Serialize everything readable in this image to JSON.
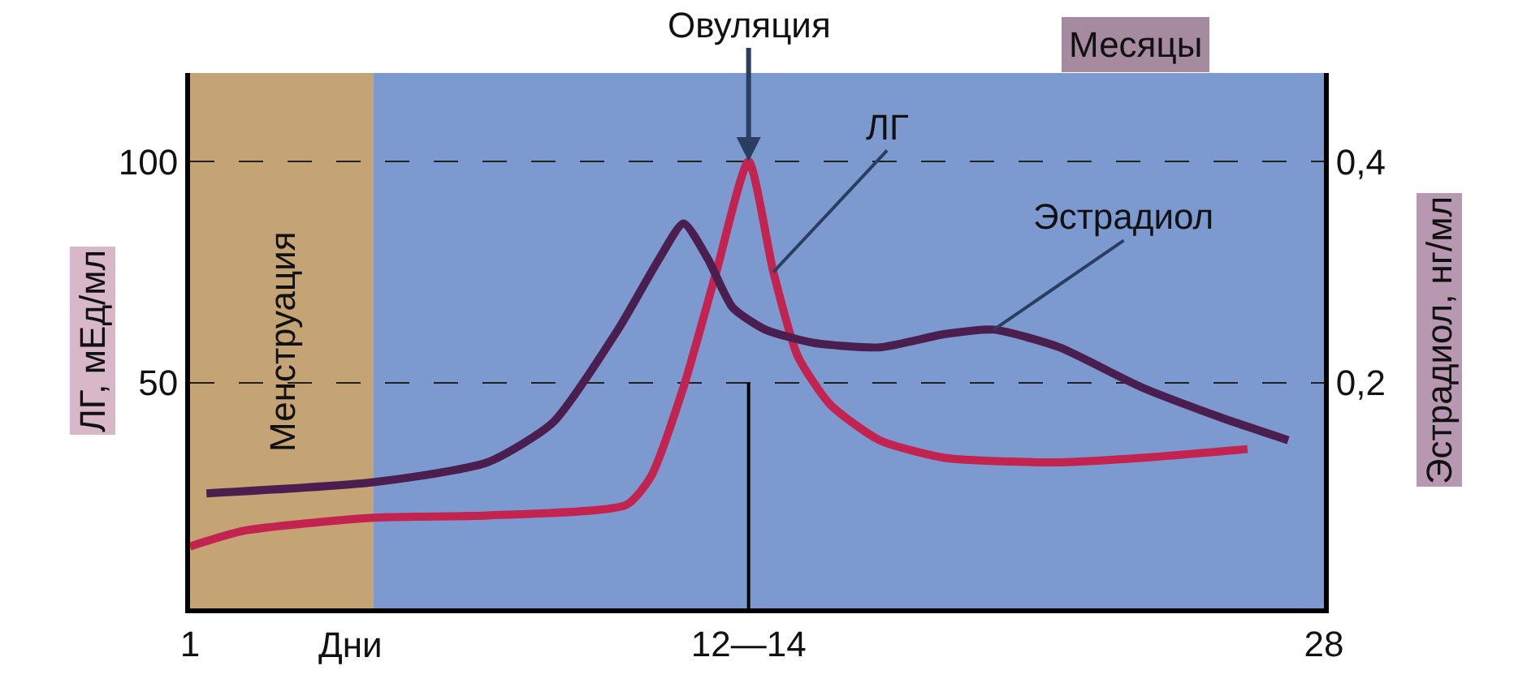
{
  "chart_data": {
    "type": "line",
    "xlabel": "Дни",
    "ylabel": "ЛГ, мЕд/мл",
    "y2label": "Эстрадиол, нг/мл",
    "xlim": [
      1,
      28
    ],
    "xticks": [
      1,
      {
        "value": 14.3,
        "label": "12—14"
      },
      28
    ],
    "ylim": [
      -1,
      120
    ],
    "yticks": [
      50,
      100
    ],
    "y2lim": [
      -0.004,
      0.48
    ],
    "y2ticks": [
      {
        "value": 0.2,
        "label": "0,2"
      },
      {
        "value": 0.4,
        "label": "0,4"
      }
    ],
    "grid": "y",
    "legend": false,
    "marker": "none",
    "line_style": "solid",
    "series": [
      {
        "name": "ЛГ",
        "color": "#c2244f",
        "x": [
          1,
          2.25,
          5.36,
          8.08,
          11.39,
          11.97,
          12.75,
          13.53,
          14.3,
          14.89,
          15.47,
          16.25,
          17.42,
          18.98,
          21.7,
          23.65,
          26.18
        ],
        "values": [
          13,
          16.5,
          19.5,
          20,
          22.4,
          28.7,
          49,
          75,
          100,
          75,
          56,
          45,
          37,
          33,
          32,
          33,
          35
        ]
      },
      {
        "name": "Эстрадиол",
        "axis": "y2",
        "color": "#4a1f4f",
        "x": [
          1.39,
          5.36,
          8.08,
          9.64,
          11.19,
          12.17,
          12.75,
          13.33,
          13.92,
          14.7,
          15.86,
          17.42,
          18.98,
          20.14,
          21.7,
          23.65,
          25.59,
          27.15
        ],
        "values": [
          0.1,
          0.11,
          0.128,
          0.164,
          0.248,
          0.312,
          0.344,
          0.312,
          0.268,
          0.248,
          0.236,
          0.232,
          0.244,
          0.248,
          0.232,
          0.196,
          0.168,
          0.148
        ]
      }
    ],
    "bands": [
      {
        "axis": "x",
        "from": 1,
        "to": 5.37,
        "label": "Менструация",
        "color": "#c4a474"
      }
    ],
    "ref_lines": [
      {
        "axis": "x",
        "value": 14.3
      }
    ],
    "annotations": [
      {
        "text": "Овуляция",
        "x": 14.3,
        "y": 100
      },
      "Месяцы"
    ]
  }
}
